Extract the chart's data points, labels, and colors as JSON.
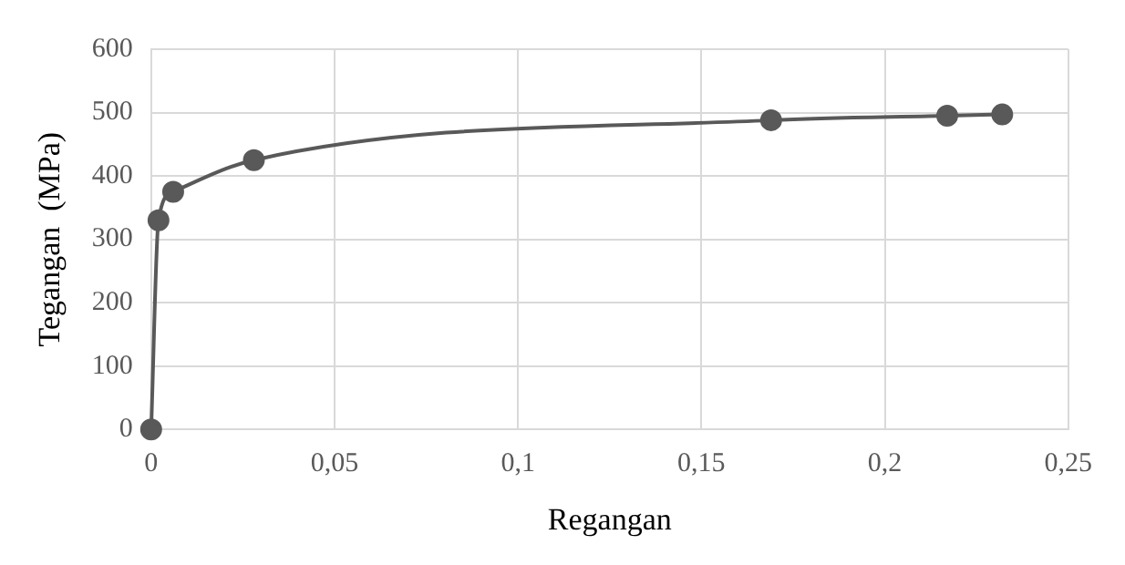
{
  "chart_data": {
    "type": "line",
    "xlabel": "Regangan",
    "ylabel": "Tegangan  (MPa)",
    "x": [
      0,
      0.002,
      0.006,
      0.028,
      0.169,
      0.217,
      0.232
    ],
    "series": [
      {
        "color": "#595959",
        "values": [
          0,
          330,
          375,
          425,
          488,
          495,
          497
        ]
      }
    ],
    "xlim": [
      0,
      0.25
    ],
    "xticks": [
      0,
      {
        "value": 0.05,
        "label": "0,05"
      },
      {
        "value": 0.1,
        "label": "0,1"
      },
      {
        "value": 0.15,
        "label": "0,15"
      },
      {
        "value": 0.2,
        "label": "0,2"
      },
      {
        "value": 0.25,
        "label": "0,25"
      }
    ],
    "ylim": [
      0,
      600
    ],
    "yticks": [
      0,
      100,
      200,
      300,
      400,
      500,
      600
    ],
    "grid": true,
    "legend": false,
    "marker": "circle",
    "line_style": "solid"
  }
}
